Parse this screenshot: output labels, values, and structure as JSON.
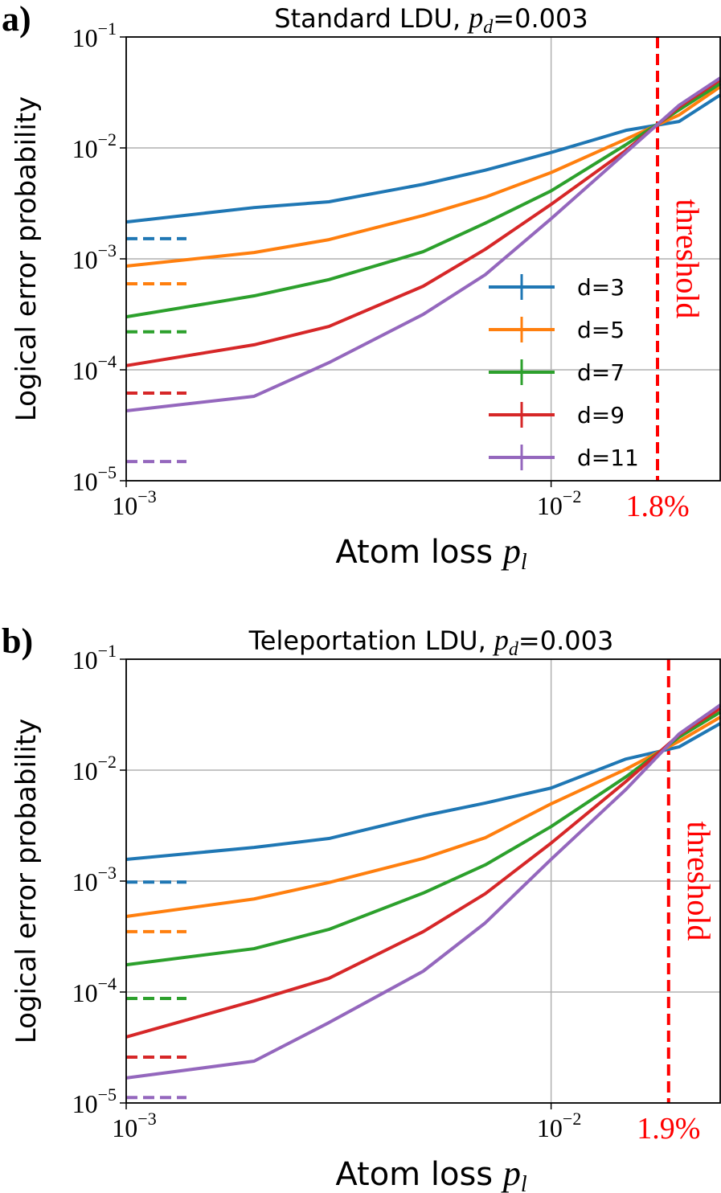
{
  "chart_data": [
    {
      "type": "line",
      "panel_label": "a)",
      "title": {
        "text": "Standard LDU, ",
        "symbol": "p",
        "subscript": "d",
        "value": "=0.003"
      },
      "xlabel": {
        "text": "Atom loss ",
        "symbol": "p",
        "subscript": "l"
      },
      "ylabel": "Logical error probability",
      "xscale": "log",
      "yscale": "log",
      "grid": true,
      "legend": true,
      "xlim": [
        0.001,
        0.025
      ],
      "ylim": [
        1e-05,
        0.1
      ],
      "xticks": [
        {
          "value": 0.001,
          "label": "10",
          "exponent": "−3"
        },
        {
          "value": 0.01,
          "label": "10",
          "exponent": "−2"
        }
      ],
      "yticks": [
        {
          "value": 1e-05,
          "label": "10",
          "exponent": "−5"
        },
        {
          "value": 0.0001,
          "label": "10",
          "exponent": "−4"
        },
        {
          "value": 0.001,
          "label": "10",
          "exponent": "−3"
        },
        {
          "value": 0.01,
          "label": "10",
          "exponent": "−2"
        },
        {
          "value": 0.1,
          "label": "10",
          "exponent": "−1"
        }
      ],
      "x": [
        0.001,
        0.002,
        0.003,
        0.005,
        0.007,
        0.01,
        0.015,
        0.02,
        0.025
      ],
      "series": [
        {
          "name": "d=3",
          "color": "#1f77b4",
          "values": [
            0.00215,
            0.0029,
            0.00327,
            0.0047,
            0.0063,
            0.0091,
            0.0144,
            0.0173,
            0.03
          ],
          "asymptote": 0.00152
        },
        {
          "name": "d=5",
          "color": "#ff7f0e",
          "values": [
            0.00086,
            0.00114,
            0.00149,
            0.00246,
            0.0036,
            0.006,
            0.012,
            0.0198,
            0.0356
          ],
          "asymptote": 0.000596
        },
        {
          "name": "d=7",
          "color": "#2ca02c",
          "values": [
            0.0003,
            0.000464,
            0.00065,
            0.00116,
            0.0021,
            0.0041,
            0.0107,
            0.022,
            0.038
          ],
          "asymptote": 0.00022
        },
        {
          "name": "d=9",
          "color": "#d62728",
          "values": [
            0.000109,
            0.000168,
            0.000246,
            0.000567,
            0.00122,
            0.0031,
            0.0095,
            0.0234,
            0.041
          ],
          "asymptote": 6.17e-05
        },
        {
          "name": "d=11",
          "color": "#9467bd",
          "values": [
            4.27e-05,
            5.77e-05,
            0.000116,
            0.000316,
            0.00072,
            0.0023,
            0.0091,
            0.0242,
            0.0427
          ],
          "asymptote": 1.49e-05
        }
      ],
      "threshold": {
        "value": 0.0178,
        "label": "1.8%",
        "text": "threshold",
        "color": "#ff0000"
      }
    },
    {
      "type": "line",
      "panel_label": "b)",
      "title": {
        "text": "Teleportation LDU, ",
        "symbol": "p",
        "subscript": "d",
        "value": "=0.003"
      },
      "xlabel": {
        "text": "Atom loss ",
        "symbol": "p",
        "subscript": "l"
      },
      "ylabel": "Logical error probability",
      "xscale": "log",
      "yscale": "log",
      "grid": true,
      "legend": false,
      "xlim": [
        0.001,
        0.025
      ],
      "ylim": [
        1e-05,
        0.1
      ],
      "xticks": [
        {
          "value": 0.001,
          "label": "10",
          "exponent": "−3"
        },
        {
          "value": 0.01,
          "label": "10",
          "exponent": "−2"
        }
      ],
      "yticks": [
        {
          "value": 1e-05,
          "label": "10",
          "exponent": "−5"
        },
        {
          "value": 0.0001,
          "label": "10",
          "exponent": "−4"
        },
        {
          "value": 0.001,
          "label": "10",
          "exponent": "−3"
        },
        {
          "value": 0.01,
          "label": "10",
          "exponent": "−2"
        },
        {
          "value": 0.1,
          "label": "10",
          "exponent": "−1"
        }
      ],
      "x": [
        0.001,
        0.002,
        0.003,
        0.005,
        0.007,
        0.01,
        0.015,
        0.02,
        0.025
      ],
      "series": [
        {
          "name": "d=3",
          "color": "#1f77b4",
          "values": [
            0.00157,
            0.00201,
            0.00242,
            0.00387,
            0.00505,
            0.0069,
            0.0126,
            0.0162,
            0.0263
          ],
          "asymptote": 0.00098
        },
        {
          "name": "d=5",
          "color": "#ff7f0e",
          "values": [
            0.00048,
            0.00069,
            0.00097,
            0.0016,
            0.00246,
            0.00497,
            0.0102,
            0.0182,
            0.03
          ],
          "asymptote": 0.00035
        },
        {
          "name": "d=7",
          "color": "#2ca02c",
          "values": [
            0.000176,
            0.000246,
            0.000367,
            0.00078,
            0.0014,
            0.0031,
            0.0087,
            0.0198,
            0.0333
          ],
          "asymptote": 8.75e-05
        },
        {
          "name": "d=9",
          "color": "#d62728",
          "values": [
            3.93e-05,
            8.32e-05,
            0.000133,
            0.00035,
            0.00077,
            0.0022,
            0.0079,
            0.0208,
            0.0361
          ],
          "asymptote": 2.59e-05
        },
        {
          "name": "d=11",
          "color": "#9467bd",
          "values": [
            1.68e-05,
            2.38e-05,
            5.3e-05,
            0.000154,
            0.00042,
            0.00157,
            0.0067,
            0.0212,
            0.0386
          ],
          "asymptote": 1.12e-05
        }
      ],
      "threshold": {
        "value": 0.0189,
        "label": "1.9%",
        "text": "threshold",
        "color": "#ff0000"
      }
    }
  ]
}
